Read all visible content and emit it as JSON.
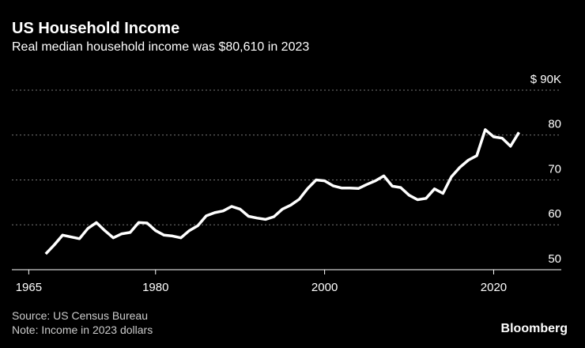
{
  "chart_data": {
    "type": "line",
    "title": "US Household Income",
    "subtitle": "Real median household income was $80,610 in 2023",
    "source": "Source: US Census Bureau",
    "note": "Note: Income in 2023 dollars",
    "brand": "Bloomberg",
    "x": [
      1967,
      1968,
      1969,
      1970,
      1971,
      1972,
      1973,
      1974,
      1975,
      1976,
      1977,
      1978,
      1979,
      1980,
      1981,
      1982,
      1983,
      1984,
      1985,
      1986,
      1987,
      1988,
      1989,
      1990,
      1991,
      1992,
      1993,
      1994,
      1995,
      1996,
      1997,
      1998,
      1999,
      2000,
      2001,
      2002,
      2003,
      2004,
      2005,
      2006,
      2007,
      2008,
      2009,
      2010,
      2011,
      2012,
      2013,
      2014,
      2015,
      2016,
      2017,
      2018,
      2019,
      2020,
      2021,
      2022,
      2023
    ],
    "series": [
      {
        "name": "Real median household income",
        "color": "#ffffff",
        "values": [
          53.5,
          55.5,
          57.7,
          57.3,
          56.9,
          59.2,
          60.5,
          58.7,
          57.1,
          58.0,
          58.3,
          60.5,
          60.4,
          58.7,
          57.7,
          57.5,
          57.1,
          58.7,
          59.8,
          62.0,
          62.7,
          63.1,
          64.1,
          63.5,
          61.9,
          61.5,
          61.2,
          61.8,
          63.5,
          64.4,
          65.7,
          68.1,
          70.0,
          69.8,
          68.7,
          68.2,
          68.2,
          68.1,
          69.0,
          69.8,
          70.9,
          68.6,
          68.3,
          66.6,
          65.6,
          65.9,
          68.0,
          67.0,
          70.7,
          72.8,
          74.4,
          75.4,
          81.2,
          79.6,
          79.3,
          77.5,
          80.6
        ]
      }
    ],
    "xlim": [
      1963,
      2028
    ],
    "xticks": [
      1965,
      1980,
      2000,
      2020
    ],
    "ylim": [
      50,
      95
    ],
    "yticks": [
      {
        "value": 90,
        "label": "$ 90K"
      },
      80,
      70,
      60,
      50
    ],
    "grid": true
  }
}
